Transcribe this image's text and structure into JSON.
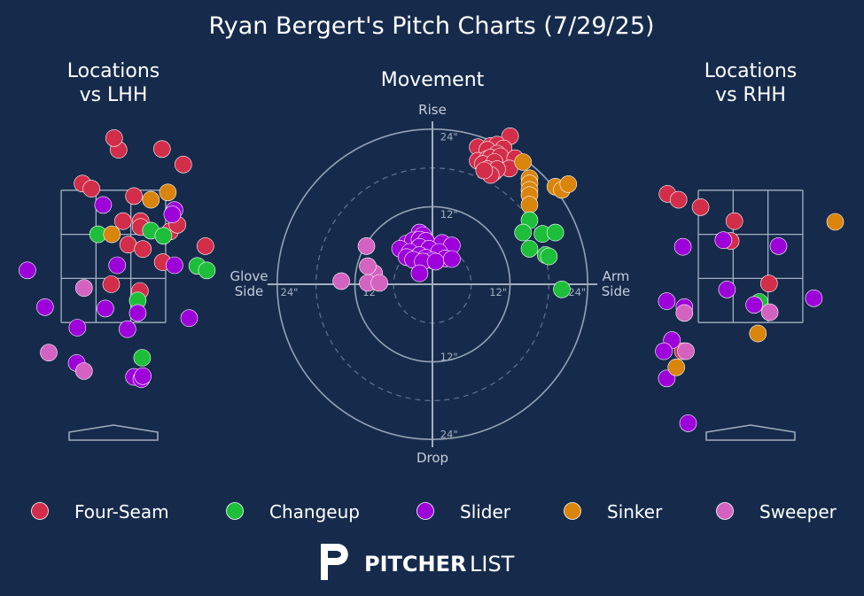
{
  "chart_data": {
    "type": "scatter",
    "title": "Ryan Bergert's Pitch Charts (7/29/25)",
    "colors": {
      "background": "#162b4c",
      "grid": "#a3afbf",
      "Four-Seam": "#d22d49",
      "Changeup": "#1dbe3a",
      "Slider": "#9d00d9",
      "Sinker": "#d9840b",
      "Sweeper": "#d462c0"
    },
    "legend": [
      {
        "name": "Four-Seam",
        "color": "#d22d49"
      },
      {
        "name": "Changeup",
        "color": "#1dbe3a"
      },
      {
        "name": "Slider",
        "color": "#9d00d9"
      },
      {
        "name": "Sinker",
        "color": "#d9840b"
      },
      {
        "name": "Sweeper",
        "color": "#d462c0"
      }
    ],
    "lhh": {
      "title_line1": "Locations",
      "title_line2": "vs LHH",
      "x_unit": "plate_x (ft, catcher view)",
      "y_unit": "plate_z (ft)",
      "zone": {
        "x": [
          -0.71,
          0.71
        ],
        "z": [
          1.6,
          3.4
        ]
      },
      "points": [
        {
          "pitch": "Four-Seam",
          "x": -1.93,
          "z": 3.99
        },
        {
          "pitch": "Four-Seam",
          "x": -1.86,
          "z": 2.59
        },
        {
          "pitch": "Four-Seam",
          "x": -0.42,
          "z": 3.49
        },
        {
          "pitch": "Four-Seam",
          "x": -0.3,
          "z": 3.42
        },
        {
          "pitch": "Four-Seam",
          "x": 0.07,
          "z": 3.95
        },
        {
          "pitch": "Four-Seam",
          "x": 0.01,
          "z": 4.11
        },
        {
          "pitch": "Four-Seam",
          "x": 0.66,
          "z": 3.96
        },
        {
          "pitch": "Four-Seam",
          "x": 0.95,
          "z": 3.75
        },
        {
          "pitch": "Four-Seam",
          "x": 0.28,
          "z": 3.32
        },
        {
          "pitch": "Four-Seam",
          "x": 0.13,
          "z": 2.98
        },
        {
          "pitch": "Four-Seam",
          "x": 0.37,
          "z": 2.98
        },
        {
          "pitch": "Four-Seam",
          "x": 0.37,
          "z": 2.9
        },
        {
          "pitch": "Four-Seam",
          "x": 0.77,
          "z": 2.84
        },
        {
          "pitch": "Four-Seam",
          "x": 0.87,
          "z": 2.93
        },
        {
          "pitch": "Four-Seam",
          "x": 0.2,
          "z": 2.66
        },
        {
          "pitch": "Four-Seam",
          "x": 0.4,
          "z": 2.6
        },
        {
          "pitch": "Four-Seam",
          "x": 0.67,
          "z": 2.42
        },
        {
          "pitch": "Four-Seam",
          "x": 1.25,
          "z": 2.64
        },
        {
          "pitch": "Four-Seam",
          "x": 0.36,
          "z": 2.03
        },
        {
          "pitch": "Four-Seam",
          "x": -0.03,
          "z": 2.12
        },
        {
          "pitch": "Changeup",
          "x": -0.21,
          "z": 2.8
        },
        {
          "pitch": "Changeup",
          "x": 0.51,
          "z": 2.85
        },
        {
          "pitch": "Changeup",
          "x": 0.68,
          "z": 2.78
        },
        {
          "pitch": "Changeup",
          "x": 1.14,
          "z": 2.37
        },
        {
          "pitch": "Changeup",
          "x": 1.27,
          "z": 2.31
        },
        {
          "pitch": "Changeup",
          "x": 0.33,
          "z": 1.9
        },
        {
          "pitch": "Changeup",
          "x": 0.39,
          "z": 1.12
        },
        {
          "pitch": "Slider",
          "x": -0.14,
          "z": 3.2
        },
        {
          "pitch": "Slider",
          "x": 0.83,
          "z": 3.13
        },
        {
          "pitch": "Slider",
          "x": 0.8,
          "z": 3.07
        },
        {
          "pitch": "Slider",
          "x": -1.17,
          "z": 2.31
        },
        {
          "pitch": "Slider",
          "x": 0.05,
          "z": 2.38
        },
        {
          "pitch": "Slider",
          "x": 0.83,
          "z": 2.38
        },
        {
          "pitch": "Slider",
          "x": -0.93,
          "z": 1.81
        },
        {
          "pitch": "Slider",
          "x": -0.11,
          "z": 1.79
        },
        {
          "pitch": "Slider",
          "x": 0.33,
          "z": 1.73
        },
        {
          "pitch": "Slider",
          "x": -0.49,
          "z": 1.53
        },
        {
          "pitch": "Slider",
          "x": 0.19,
          "z": 1.51
        },
        {
          "pitch": "Slider",
          "x": 1.03,
          "z": 1.66
        },
        {
          "pitch": "Slider",
          "x": -0.5,
          "z": 1.05
        },
        {
          "pitch": "Slider",
          "x": 0.28,
          "z": 0.86
        },
        {
          "pitch": "Slider",
          "x": 0.38,
          "z": 0.83
        },
        {
          "pitch": "Slider",
          "x": 0.4,
          "z": 0.87
        },
        {
          "pitch": "Sinker",
          "x": 0.51,
          "z": 3.27
        },
        {
          "pitch": "Sinker",
          "x": 0.74,
          "z": 3.37
        },
        {
          "pitch": "Sinker",
          "x": -0.02,
          "z": 2.8
        },
        {
          "pitch": "Sweeper",
          "x": -0.4,
          "z": 2.07
        },
        {
          "pitch": "Sweeper",
          "x": -0.88,
          "z": 1.19
        },
        {
          "pitch": "Sweeper",
          "x": -0.4,
          "z": 0.94
        }
      ]
    },
    "movement": {
      "title": "Movement",
      "rise_label": "Rise",
      "drop_label": "Drop",
      "glove_label_line1": "Glove",
      "glove_label_line2": "Side",
      "arm_label_line1": "Arm",
      "arm_label_line2": "Side",
      "x_unit": "horizontal break (in)",
      "y_unit": "induced vertical break (in)",
      "rings": [
        {
          "r": 6,
          "style": "dashed"
        },
        {
          "r": 12,
          "style": "solid"
        },
        {
          "r": 18,
          "style": "dashed"
        },
        {
          "r": 24,
          "style": "solid"
        }
      ],
      "ring_labels": [
        {
          "text": "24\"",
          "x": 1.2,
          "y": 22.8
        },
        {
          "text": "12\"",
          "x": 1.2,
          "y": 10.8
        },
        {
          "text": "12\"",
          "x": 1.2,
          "y": -11.2
        },
        {
          "text": "24\"",
          "x": 1.2,
          "y": -23.2
        },
        {
          "text": "24\"",
          "x": -23.5,
          "y": -1.2
        },
        {
          "text": "12\"",
          "x": -10.8,
          "y": -1.2
        },
        {
          "text": "12\"",
          "x": 8.8,
          "y": -1.2
        },
        {
          "text": "24\"",
          "x": 21.0,
          "y": -1.2
        }
      ],
      "points": [
        {
          "pitch": "Four-Seam",
          "x": 12.0,
          "y": 22.9
        },
        {
          "pitch": "Four-Seam",
          "x": 7.0,
          "y": 21.2
        },
        {
          "pitch": "Four-Seam",
          "x": 9.0,
          "y": 21.4
        },
        {
          "pitch": "Four-Seam",
          "x": 10.0,
          "y": 21.6
        },
        {
          "pitch": "Four-Seam",
          "x": 11.0,
          "y": 21.0
        },
        {
          "pitch": "Four-Seam",
          "x": 8.5,
          "y": 20.8
        },
        {
          "pitch": "Four-Seam",
          "x": 10.0,
          "y": 20.2
        },
        {
          "pitch": "Four-Seam",
          "x": 7.0,
          "y": 19.1
        },
        {
          "pitch": "Four-Seam",
          "x": 8.5,
          "y": 19.4
        },
        {
          "pitch": "Four-Seam",
          "x": 9.0,
          "y": 19.6
        },
        {
          "pitch": "Four-Seam",
          "x": 10.5,
          "y": 19.8
        },
        {
          "pitch": "Four-Seam",
          "x": 12.8,
          "y": 19.5
        },
        {
          "pitch": "Four-Seam",
          "x": 7.8,
          "y": 18.6
        },
        {
          "pitch": "Four-Seam",
          "x": 9.6,
          "y": 18.9
        },
        {
          "pitch": "Four-Seam",
          "x": 11.9,
          "y": 17.9
        },
        {
          "pitch": "Four-Seam",
          "x": 8.5,
          "y": 17.8
        },
        {
          "pitch": "Four-Seam",
          "x": 9.5,
          "y": 17.3
        },
        {
          "pitch": "Four-Seam",
          "x": 10.0,
          "y": 17.8
        },
        {
          "pitch": "Four-Seam",
          "x": 9.0,
          "y": 16.9
        },
        {
          "pitch": "Four-Seam",
          "x": 8.0,
          "y": 17.6
        },
        {
          "pitch": "Sinker",
          "x": 14.0,
          "y": 18.9
        },
        {
          "pitch": "Sinker",
          "x": 15.0,
          "y": 16.4
        },
        {
          "pitch": "Sinker",
          "x": 15.0,
          "y": 15.6
        },
        {
          "pitch": "Sinker",
          "x": 15.0,
          "y": 14.6
        },
        {
          "pitch": "Sinker",
          "x": 15.0,
          "y": 13.8
        },
        {
          "pitch": "Sinker",
          "x": 15.0,
          "y": 12.3
        },
        {
          "pitch": "Sinker",
          "x": 19.0,
          "y": 15.1
        },
        {
          "pitch": "Sinker",
          "x": 20.0,
          "y": 14.6
        },
        {
          "pitch": "Sinker",
          "x": 21.0,
          "y": 15.5
        },
        {
          "pitch": "Changeup",
          "x": 15.0,
          "y": 9.9
        },
        {
          "pitch": "Changeup",
          "x": 14.0,
          "y": 8.0
        },
        {
          "pitch": "Changeup",
          "x": 17.0,
          "y": 7.8
        },
        {
          "pitch": "Changeup",
          "x": 19.0,
          "y": 8.0
        },
        {
          "pitch": "Changeup",
          "x": 15.0,
          "y": 5.5
        },
        {
          "pitch": "Changeup",
          "x": 17.5,
          "y": 4.5
        },
        {
          "pitch": "Changeup",
          "x": 18.0,
          "y": 4.3
        },
        {
          "pitch": "Changeup",
          "x": 20.0,
          "y": -0.8
        },
        {
          "pitch": "Slider",
          "x": -2.0,
          "y": 8.0
        },
        {
          "pitch": "Slider",
          "x": -1.5,
          "y": 7.6
        },
        {
          "pitch": "Slider",
          "x": -4.0,
          "y": 6.3
        },
        {
          "pitch": "Slider",
          "x": -3.0,
          "y": 6.8
        },
        {
          "pitch": "Slider",
          "x": -2.0,
          "y": 6.9
        },
        {
          "pitch": "Slider",
          "x": -1.0,
          "y": 6.7
        },
        {
          "pitch": "Slider",
          "x": 1.5,
          "y": 6.4
        },
        {
          "pitch": "Slider",
          "x": 3.0,
          "y": 6.0
        },
        {
          "pitch": "Slider",
          "x": -5.0,
          "y": 5.5
        },
        {
          "pitch": "Slider",
          "x": -2.0,
          "y": 5.8
        },
        {
          "pitch": "Slider",
          "x": -0.5,
          "y": 5.5
        },
        {
          "pitch": "Slider",
          "x": 1.0,
          "y": 5.0
        },
        {
          "pitch": "Slider",
          "x": -3.5,
          "y": 5.0
        },
        {
          "pitch": "Slider",
          "x": -2.0,
          "y": 4.5
        },
        {
          "pitch": "Slider",
          "x": -1.0,
          "y": 4.1
        },
        {
          "pitch": "Slider",
          "x": 0.0,
          "y": 3.7
        },
        {
          "pitch": "Slider",
          "x": 2.0,
          "y": 4.0
        },
        {
          "pitch": "Slider",
          "x": -4.0,
          "y": 4.2
        },
        {
          "pitch": "Slider",
          "x": -3.0,
          "y": 3.8
        },
        {
          "pitch": "Slider",
          "x": -1.5,
          "y": 3.5
        },
        {
          "pitch": "Slider",
          "x": 0.5,
          "y": 3.5
        },
        {
          "pitch": "Slider",
          "x": 3.0,
          "y": 3.9
        },
        {
          "pitch": "Slider",
          "x": -2.0,
          "y": 1.7
        },
        {
          "pitch": "Sweeper",
          "x": -10.2,
          "y": 5.9
        },
        {
          "pitch": "Sweeper",
          "x": -9.0,
          "y": 1.7
        },
        {
          "pitch": "Sweeper",
          "x": -10.0,
          "y": 2.8
        },
        {
          "pitch": "Sweeper",
          "x": -14.1,
          "y": 0.5
        },
        {
          "pitch": "Sweeper",
          "x": -10.0,
          "y": 0.2
        },
        {
          "pitch": "Sweeper",
          "x": -8.2,
          "y": 0.2
        }
      ]
    },
    "rhh": {
      "title_line1": "Locations",
      "title_line2": "vs RHH",
      "x_unit": "plate_x (ft, catcher view)",
      "y_unit": "plate_z (ft)",
      "zone": {
        "x": [
          -0.71,
          0.71
        ],
        "z": [
          1.6,
          3.4
        ]
      },
      "points": [
        {
          "pitch": "Four-Seam",
          "x": -1.13,
          "z": 3.35
        },
        {
          "pitch": "Four-Seam",
          "x": -0.98,
          "z": 3.27
        },
        {
          "pitch": "Four-Seam",
          "x": -0.68,
          "z": 3.17
        },
        {
          "pitch": "Four-Seam",
          "x": -0.22,
          "z": 2.98
        },
        {
          "pitch": "Four-Seam",
          "x": -0.27,
          "z": 2.71
        },
        {
          "pitch": "Four-Seam",
          "x": 0.25,
          "z": 2.13
        },
        {
          "pitch": "Four-Seam",
          "x": -0.92,
          "z": 1.21
        },
        {
          "pitch": "Changeup",
          "x": 0.12,
          "z": 1.88
        },
        {
          "pitch": "Slider",
          "x": -0.92,
          "z": 2.63
        },
        {
          "pitch": "Slider",
          "x": -0.37,
          "z": 2.72
        },
        {
          "pitch": "Slider",
          "x": 0.38,
          "z": 2.64
        },
        {
          "pitch": "Slider",
          "x": -0.32,
          "z": 2.05
        },
        {
          "pitch": "Slider",
          "x": 0.05,
          "z": 1.84
        },
        {
          "pitch": "Slider",
          "x": 0.86,
          "z": 1.93
        },
        {
          "pitch": "Slider",
          "x": -1.14,
          "z": 1.89
        },
        {
          "pitch": "Slider",
          "x": -0.9,
          "z": 1.81
        },
        {
          "pitch": "Slider",
          "x": -1.07,
          "z": 1.36
        },
        {
          "pitch": "Slider",
          "x": -1.18,
          "z": 1.21
        },
        {
          "pitch": "Slider",
          "x": -1.14,
          "z": 0.84
        },
        {
          "pitch": "Slider",
          "x": -0.85,
          "z": 0.23
        },
        {
          "pitch": "Sinker",
          "x": 1.15,
          "z": 2.97
        },
        {
          "pitch": "Sinker",
          "x": 0.1,
          "z": 1.45
        },
        {
          "pitch": "Sinker",
          "x": -1.01,
          "z": 0.99
        },
        {
          "pitch": "Sweeper",
          "x": -0.9,
          "z": 1.73
        },
        {
          "pitch": "Sweeper",
          "x": 0.26,
          "z": 1.74
        },
        {
          "pitch": "Sweeper",
          "x": -0.88,
          "z": 1.21
        }
      ]
    }
  },
  "brand": {
    "bold": "PITCHER",
    "light": "LIST"
  }
}
